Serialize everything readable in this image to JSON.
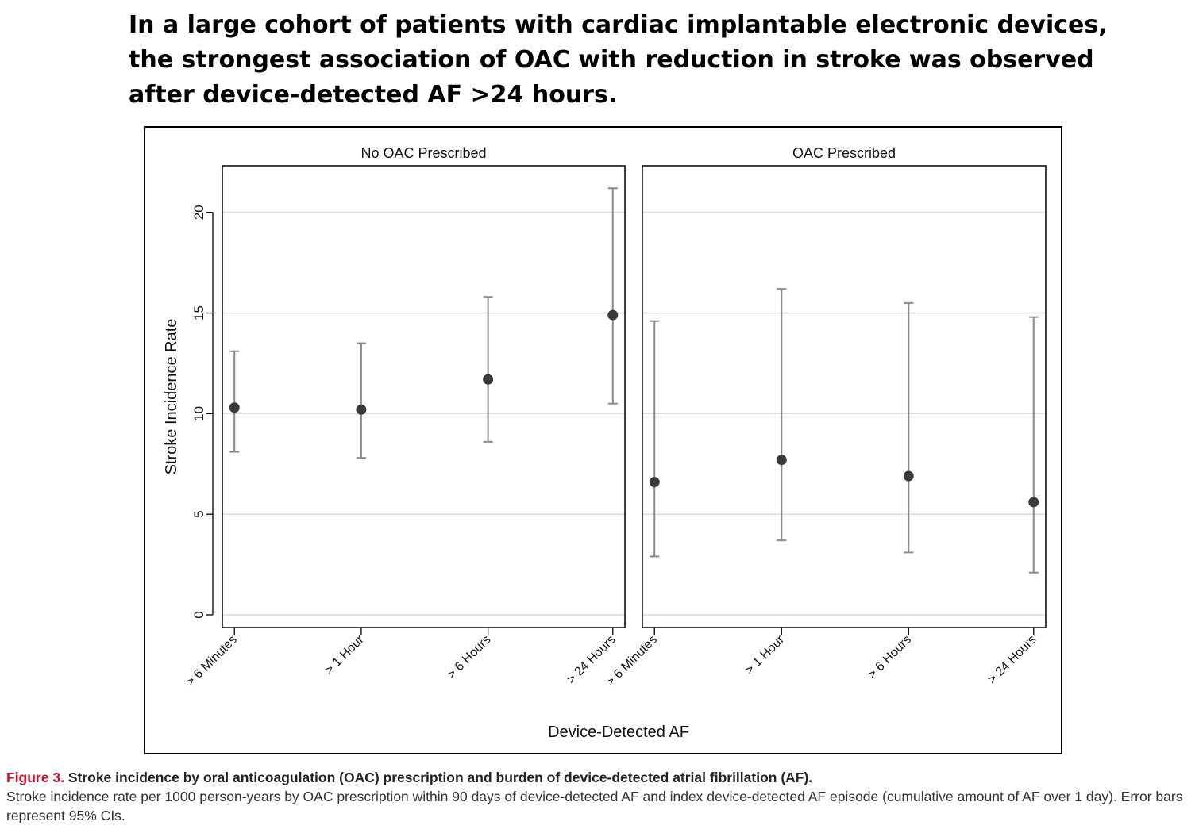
{
  "headline": {
    "line1": "In a large cohort of patients with cardiac implantable electronic devices,",
    "line2": "the strongest association of OAC with reduction in stroke was observed",
    "line3": "after device-detected AF >24 hours."
  },
  "caption": {
    "label": "Figure 3.",
    "title": "Stroke incidence by oral anticoagulation (OAC) prescription and burden of device-detected atrial fibrillation (AF).",
    "body": "Stroke incidence rate per 1000 person-years by OAC prescription within 90 days of device-detected AF and index device-detected AF episode (cumulative amount of AF over 1 day). Error bars represent 95% CIs."
  },
  "chart_data": {
    "type": "scatter",
    "subtype": "point-estimate with 95% CI error bars, two panels",
    "ylabel": "Stroke Incidence Rate",
    "xlabel": "Device-Detected AF",
    "ylim": [
      0,
      22
    ],
    "yticks": [
      0,
      5,
      10,
      15,
      20
    ],
    "grid": "horizontal",
    "categories": [
      "> 6 Minutes",
      "> 1 Hour",
      "> 6 Hours",
      "> 24 Hours"
    ],
    "colors": {
      "marker": "#3a3a3a",
      "errorbar": "#8a8a8a",
      "grid": "#dcdcdc"
    },
    "panels": [
      {
        "title": "No OAC Prescribed",
        "values": [
          10.3,
          10.2,
          11.7,
          14.9
        ],
        "lower": [
          8.1,
          7.8,
          8.6,
          10.5
        ],
        "upper": [
          13.1,
          13.5,
          15.8,
          21.2
        ]
      },
      {
        "title": "OAC Prescribed",
        "values": [
          6.6,
          7.7,
          6.9,
          5.6
        ],
        "lower": [
          2.9,
          3.7,
          3.1,
          2.1
        ],
        "upper": [
          14.6,
          16.2,
          15.5,
          14.8
        ]
      }
    ]
  }
}
